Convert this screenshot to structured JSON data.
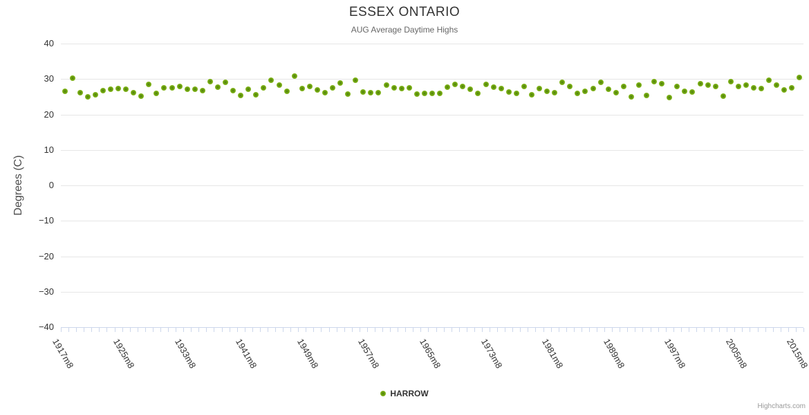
{
  "header": {
    "title": "ESSEX ONTARIO",
    "subtitle": "AUG Average Daytime Highs"
  },
  "y_axis": {
    "title": "Degrees (C)",
    "tick_values": [
      40,
      30,
      20,
      10,
      0,
      -10,
      -20,
      -30,
      -40
    ],
    "min": -40,
    "max": 40
  },
  "x_axis": {
    "label_step": 8,
    "first_label": "1917m8",
    "last_label": "2015m8"
  },
  "legend": {
    "series_name": "HARROW"
  },
  "credits": {
    "label": "Highcharts.com"
  },
  "colors": {
    "marker_outer": "#8bbc21",
    "marker_mid": "#6aa011",
    "marker_inner": "#4e7c08",
    "grid": "#e6e6e6",
    "axis": "#ccd6eb",
    "title": "#333333",
    "subtitle": "#666666",
    "labels": "#333333",
    "credits": "#999999"
  },
  "chart_data": {
    "type": "scatter",
    "title": "ESSEX ONTARIO",
    "subtitle": "AUG Average Daytime Highs",
    "xlabel": "",
    "ylabel": "Degrees (C)",
    "ylim": [
      -40,
      40
    ],
    "y_tick_interval": 10,
    "grid": "horizontal",
    "legend_position": "bottom-center",
    "x_label_every": 8,
    "categories": [
      "1917m8",
      "1918m8",
      "1919m8",
      "1920m8",
      "1921m8",
      "1922m8",
      "1923m8",
      "1924m8",
      "1925m8",
      "1926m8",
      "1927m8",
      "1928m8",
      "1929m8",
      "1930m8",
      "1931m8",
      "1932m8",
      "1933m8",
      "1934m8",
      "1935m8",
      "1936m8",
      "1937m8",
      "1938m8",
      "1939m8",
      "1940m8",
      "1941m8",
      "1942m8",
      "1943m8",
      "1944m8",
      "1945m8",
      "1946m8",
      "1947m8",
      "1948m8",
      "1949m8",
      "1950m8",
      "1951m8",
      "1952m8",
      "1953m8",
      "1954m8",
      "1955m8",
      "1956m8",
      "1957m8",
      "1958m8",
      "1959m8",
      "1960m8",
      "1961m8",
      "1962m8",
      "1963m8",
      "1964m8",
      "1965m8",
      "1966m8",
      "1967m8",
      "1968m8",
      "1969m8",
      "1970m8",
      "1971m8",
      "1972m8",
      "1973m8",
      "1974m8",
      "1975m8",
      "1976m8",
      "1977m8",
      "1978m8",
      "1979m8",
      "1980m8",
      "1981m8",
      "1982m8",
      "1983m8",
      "1984m8",
      "1985m8",
      "1986m8",
      "1987m8",
      "1988m8",
      "1989m8",
      "1990m8",
      "1991m8",
      "1992m8",
      "1993m8",
      "1994m8",
      "1995m8",
      "1996m8",
      "1997m8",
      "1998m8",
      "1999m8",
      "2000m8",
      "2001m8",
      "2002m8",
      "2003m8",
      "2004m8",
      "2005m8",
      "2008m8",
      "2009m8",
      "2010m8",
      "2011m8",
      "2012m8",
      "2013m8",
      "2014m8",
      "2015m8"
    ],
    "series": [
      {
        "name": "HARROW",
        "color": "#8bbc21",
        "values": [
          26.5,
          30.2,
          26.1,
          25.0,
          25.6,
          26.7,
          27.1,
          27.4,
          27.2,
          26.2,
          25.1,
          28.5,
          25.9,
          27.5,
          27.6,
          28.0,
          27.2,
          27.1,
          26.8,
          29.2,
          27.7,
          29.0,
          26.8,
          25.4,
          27.2,
          25.5,
          27.5,
          29.7,
          28.3,
          26.6,
          30.8,
          27.4,
          28.0,
          27.0,
          26.2,
          27.5,
          28.8,
          25.7,
          29.6,
          26.4,
          26.1,
          26.2,
          28.3,
          27.5,
          27.4,
          27.5,
          25.7,
          25.9,
          25.9,
          26.0,
          27.7,
          28.5,
          27.9,
          27.2,
          25.9,
          28.4,
          27.7,
          27.4,
          26.4,
          25.9,
          27.9,
          25.6,
          27.4,
          26.6,
          26.2,
          29.0,
          28.0,
          25.9,
          26.6,
          27.4,
          29.0,
          27.2,
          26.2,
          27.9,
          24.9,
          28.2,
          25.3,
          29.2,
          28.6,
          24.7,
          27.9,
          26.6,
          26.4,
          28.7,
          28.2,
          27.9,
          25.1,
          29.2,
          28.0,
          28.2,
          27.5,
          27.4,
          29.6,
          28.2,
          27.0,
          27.5,
          30.5
        ]
      }
    ]
  }
}
